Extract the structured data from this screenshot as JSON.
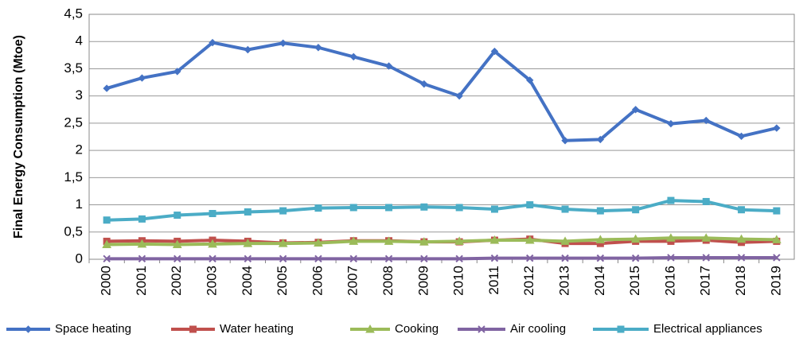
{
  "chart_data": {
    "type": "line",
    "y_label": "Final Energy Consumption (Mtoe)",
    "categories": [
      "2000",
      "2001",
      "2002",
      "2003",
      "2004",
      "2005",
      "2006",
      "2007",
      "2008",
      "2009",
      "2010",
      "2011",
      "2012",
      "2013",
      "2014",
      "2015",
      "2016",
      "2017",
      "2018",
      "2019"
    ],
    "series": [
      {
        "name": "Space heating",
        "color": "#4472c4",
        "values": [
          3.14,
          3.33,
          3.45,
          3.98,
          3.85,
          3.97,
          3.89,
          3.72,
          3.55,
          3.22,
          3.0,
          3.82,
          3.29,
          2.18,
          2.2,
          2.75,
          2.49,
          2.55,
          2.26,
          2.41
        ]
      },
      {
        "name": "Water heating",
        "color": "#c0504d",
        "values": [
          0.33,
          0.34,
          0.33,
          0.35,
          0.33,
          0.3,
          0.31,
          0.34,
          0.34,
          0.32,
          0.32,
          0.35,
          0.37,
          0.29,
          0.29,
          0.33,
          0.33,
          0.35,
          0.31,
          0.33
        ]
      },
      {
        "name": "Cooking",
        "color": "#9bbb59",
        "values": [
          0.27,
          0.28,
          0.27,
          0.28,
          0.29,
          0.29,
          0.3,
          0.33,
          0.33,
          0.32,
          0.33,
          0.35,
          0.35,
          0.33,
          0.36,
          0.37,
          0.39,
          0.39,
          0.37,
          0.36
        ]
      },
      {
        "name": "Air cooling",
        "color": "#8064a2",
        "values": [
          0.01,
          0.01,
          0.01,
          0.01,
          0.01,
          0.01,
          0.01,
          0.01,
          0.01,
          0.01,
          0.01,
          0.02,
          0.02,
          0.02,
          0.02,
          0.02,
          0.03,
          0.03,
          0.03,
          0.03
        ]
      },
      {
        "name": "Electrical appliances",
        "color": "#4bacc6",
        "values": [
          0.72,
          0.74,
          0.81,
          0.84,
          0.87,
          0.89,
          0.94,
          0.95,
          0.95,
          0.96,
          0.95,
          0.92,
          1.0,
          0.92,
          0.89,
          0.91,
          1.08,
          1.06,
          0.91,
          0.89
        ]
      }
    ],
    "ylim": [
      0,
      4.5
    ],
    "yticks": [
      0,
      {
        "value": 0.5,
        "label": "0,5"
      },
      1,
      {
        "value": 1.5,
        "label": "1,5"
      },
      2,
      {
        "value": 2.5,
        "label": "2,5"
      },
      3,
      {
        "value": 3.5,
        "label": "3,5"
      },
      4,
      {
        "value": 4.5,
        "label": "4,5"
      }
    ],
    "grid": true,
    "legend": "bottom"
  }
}
